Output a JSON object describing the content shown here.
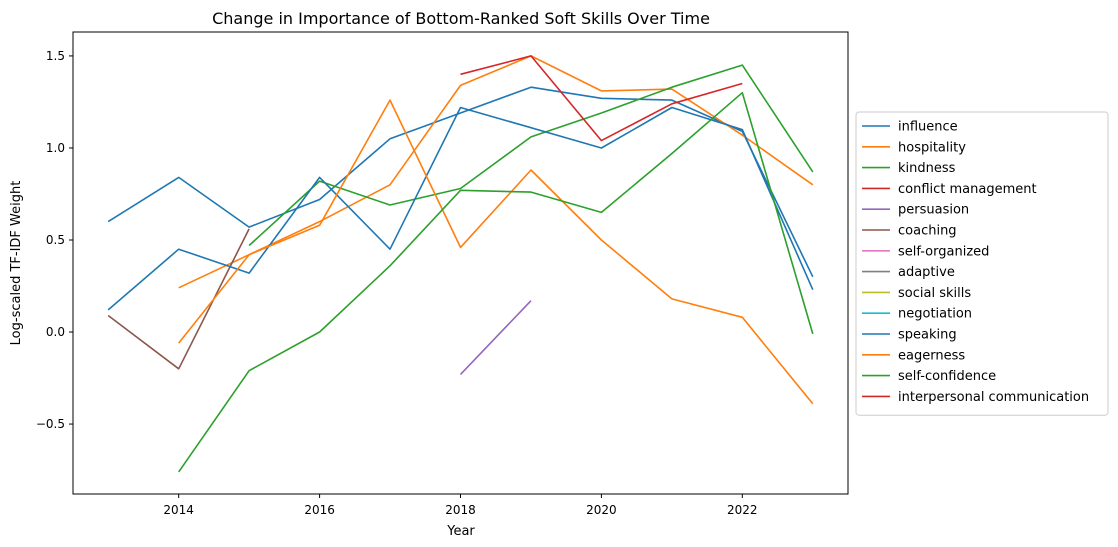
{
  "chart_data": {
    "type": "line",
    "title": "Change in Importance of Bottom-Ranked Soft Skills Over Time",
    "xlabel": "Year",
    "ylabel": "Log-scaled TF-IDF Weight",
    "xlim": [
      2012.5,
      2023.5
    ],
    "ylim": [
      -0.88,
      1.63
    ],
    "xticks": [
      2014,
      2016,
      2018,
      2020,
      2022
    ],
    "xtick_labels": [
      "2014",
      "2016",
      "2018",
      "2020",
      "2022"
    ],
    "yticks": [
      -0.5,
      0.0,
      0.5,
      1.0,
      1.5
    ],
    "ytick_labels": [
      "−0.5",
      "0.0",
      "0.5",
      "1.0",
      "1.5"
    ],
    "legend_position": "right-outside",
    "series": [
      {
        "name": "influence",
        "color": "#1f77b4",
        "points": [
          [
            2013,
            0.6
          ],
          [
            2014,
            0.84
          ],
          [
            2015,
            0.57
          ],
          [
            2016,
            0.72
          ],
          [
            2017,
            1.05
          ],
          [
            2018,
            1.19
          ],
          [
            2019,
            1.33
          ],
          [
            2020,
            1.27
          ],
          [
            2021,
            1.26
          ],
          [
            2022,
            1.09
          ],
          [
            2023,
            0.3
          ]
        ]
      },
      {
        "name": "hospitality",
        "color": "#ff7f0e",
        "points": [
          [
            2014,
            0.24
          ],
          [
            2015,
            0.42
          ],
          [
            2016,
            0.6
          ],
          [
            2017,
            0.8
          ],
          [
            2018,
            1.34
          ],
          [
            2019,
            1.5
          ],
          [
            2020,
            1.31
          ],
          [
            2021,
            1.32
          ],
          [
            2022,
            1.07
          ],
          [
            2023,
            0.8
          ]
        ]
      },
      {
        "name": "kindness",
        "color": "#2ca02c",
        "points": [
          [
            2015,
            0.47
          ],
          [
            2016,
            0.82
          ],
          [
            2017,
            0.69
          ],
          [
            2018,
            0.78
          ],
          [
            2019,
            1.06
          ],
          [
            2020,
            1.19
          ],
          [
            2021,
            1.33
          ],
          [
            2022,
            1.45
          ],
          [
            2023,
            0.87
          ]
        ]
      },
      {
        "name": "conflict management",
        "color": "#d62728",
        "points": [
          [
            2018,
            1.4
          ],
          [
            2019,
            1.5
          ],
          [
            2020,
            1.04
          ],
          [
            2021,
            1.24
          ],
          [
            2022,
            1.35
          ]
        ]
      },
      {
        "name": "persuasion",
        "color": "#9467bd",
        "points": [
          [
            2018,
            -0.23
          ],
          [
            2019,
            0.17
          ]
        ]
      },
      {
        "name": "coaching",
        "color": "#8c564b",
        "points": [
          [
            2013,
            0.09
          ],
          [
            2014,
            -0.2
          ],
          [
            2015,
            0.56
          ]
        ]
      },
      {
        "name": "self-organized",
        "color": "#e377c2",
        "points": []
      },
      {
        "name": "adaptive",
        "color": "#7f7f7f",
        "points": []
      },
      {
        "name": "social skills",
        "color": "#bcbd22",
        "points": []
      },
      {
        "name": "negotiation",
        "color": "#17becf",
        "points": []
      },
      {
        "name": "speaking",
        "color": "#1f77b4",
        "points": [
          [
            2013,
            0.12
          ],
          [
            2014,
            0.45
          ],
          [
            2015,
            0.32
          ],
          [
            2016,
            0.84
          ],
          [
            2017,
            0.45
          ],
          [
            2018,
            1.22
          ],
          [
            2019,
            1.11
          ],
          [
            2020,
            1.0
          ],
          [
            2021,
            1.22
          ],
          [
            2022,
            1.1
          ],
          [
            2023,
            0.23
          ]
        ]
      },
      {
        "name": "eagerness",
        "color": "#ff7f0e",
        "points": [
          [
            2014,
            -0.06
          ],
          [
            2015,
            0.42
          ],
          [
            2016,
            0.58
          ],
          [
            2017,
            1.26
          ],
          [
            2018,
            0.46
          ],
          [
            2019,
            0.88
          ],
          [
            2020,
            0.5
          ],
          [
            2021,
            0.18
          ],
          [
            2022,
            0.08
          ],
          [
            2023,
            -0.39
          ]
        ]
      },
      {
        "name": "self-confidence",
        "color": "#2ca02c",
        "points": [
          [
            2014,
            -0.76
          ],
          [
            2015,
            -0.21
          ],
          [
            2016,
            0.0
          ],
          [
            2017,
            0.36
          ],
          [
            2018,
            0.77
          ],
          [
            2019,
            0.76
          ],
          [
            2020,
            0.65
          ],
          [
            2021,
            0.97
          ],
          [
            2022,
            1.3
          ],
          [
            2023,
            -0.01
          ]
        ]
      },
      {
        "name": "interpersonal communication",
        "color": "#d62728",
        "points": []
      }
    ]
  }
}
